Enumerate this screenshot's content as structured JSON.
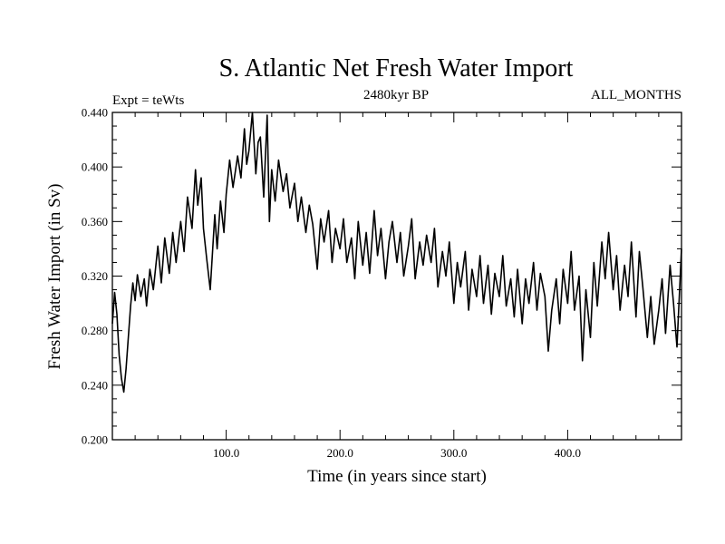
{
  "chart_data": {
    "type": "line",
    "title": "S. Atlantic Net Fresh Water Import",
    "subtitle_left": "Expt = teWts",
    "subtitle_center": "2480kyr BP",
    "subtitle_right": "ALL_MONTHS",
    "xlabel": "Time (in years since start)",
    "ylabel": "Fresh Water Import (in Sv)",
    "xlim": [
      0,
      500
    ],
    "ylim": [
      0.2,
      0.44
    ],
    "xticks_labeled": [
      100,
      200,
      300,
      400
    ],
    "xtick_labels": [
      "100.0",
      "200.0",
      "300.0",
      "400.0"
    ],
    "yticks_labeled": [
      0.2,
      0.24,
      0.28,
      0.32,
      0.36,
      0.4,
      0.44
    ],
    "ytick_labels": [
      "0.200",
      "0.240",
      "0.280",
      "0.320",
      "0.360",
      "0.400",
      "0.440"
    ],
    "series": [
      {
        "name": "Fresh Water Import",
        "x": [
          0,
          2,
          4,
          6,
          8,
          10,
          12,
          14,
          16,
          18,
          20,
          22,
          25,
          28,
          30,
          33,
          36,
          40,
          43,
          46,
          50,
          53,
          56,
          60,
          63,
          66,
          70,
          73,
          75,
          78,
          80,
          83,
          86,
          90,
          92,
          95,
          98,
          100,
          103,
          106,
          110,
          113,
          116,
          118,
          120,
          123,
          126,
          128,
          130,
          133,
          136,
          138,
          140,
          143,
          146,
          150,
          153,
          156,
          160,
          163,
          166,
          170,
          173,
          176,
          180,
          183,
          186,
          190,
          193,
          196,
          200,
          203,
          206,
          210,
          213,
          216,
          220,
          223,
          226,
          230,
          233,
          236,
          240,
          243,
          246,
          250,
          253,
          256,
          260,
          263,
          266,
          270,
          273,
          276,
          280,
          283,
          286,
          290,
          293,
          296,
          300,
          303,
          306,
          310,
          313,
          316,
          320,
          323,
          326,
          330,
          333,
          336,
          340,
          343,
          346,
          350,
          353,
          356,
          360,
          363,
          366,
          370,
          373,
          376,
          380,
          383,
          386,
          390,
          393,
          396,
          400,
          403,
          406,
          410,
          413,
          416,
          420,
          423,
          426,
          430,
          433,
          436,
          440,
          443,
          446,
          450,
          453,
          456,
          460,
          463,
          466,
          470,
          473,
          476,
          480,
          483,
          486,
          490,
          493,
          496,
          500
        ],
        "values": [
          0.285,
          0.308,
          0.292,
          0.262,
          0.245,
          0.235,
          0.252,
          0.275,
          0.298,
          0.315,
          0.302,
          0.321,
          0.305,
          0.318,
          0.298,
          0.325,
          0.31,
          0.342,
          0.315,
          0.348,
          0.322,
          0.352,
          0.33,
          0.36,
          0.338,
          0.378,
          0.355,
          0.398,
          0.372,
          0.392,
          0.355,
          0.332,
          0.31,
          0.365,
          0.34,
          0.375,
          0.352,
          0.38,
          0.405,
          0.385,
          0.408,
          0.392,
          0.428,
          0.402,
          0.412,
          0.44,
          0.395,
          0.418,
          0.422,
          0.378,
          0.438,
          0.36,
          0.398,
          0.375,
          0.405,
          0.382,
          0.395,
          0.37,
          0.388,
          0.36,
          0.378,
          0.352,
          0.372,
          0.358,
          0.325,
          0.362,
          0.345,
          0.368,
          0.33,
          0.355,
          0.34,
          0.362,
          0.33,
          0.348,
          0.318,
          0.36,
          0.328,
          0.352,
          0.322,
          0.368,
          0.335,
          0.355,
          0.318,
          0.345,
          0.36,
          0.33,
          0.352,
          0.32,
          0.342,
          0.362,
          0.318,
          0.345,
          0.328,
          0.35,
          0.33,
          0.355,
          0.312,
          0.338,
          0.32,
          0.345,
          0.3,
          0.33,
          0.312,
          0.338,
          0.295,
          0.325,
          0.305,
          0.335,
          0.3,
          0.328,
          0.292,
          0.322,
          0.305,
          0.335,
          0.298,
          0.318,
          0.29,
          0.325,
          0.285,
          0.318,
          0.3,
          0.33,
          0.295,
          0.322,
          0.305,
          0.265,
          0.295,
          0.318,
          0.285,
          0.325,
          0.3,
          0.338,
          0.295,
          0.32,
          0.258,
          0.31,
          0.275,
          0.33,
          0.298,
          0.345,
          0.318,
          0.352,
          0.31,
          0.335,
          0.295,
          0.328,
          0.305,
          0.345,
          0.29,
          0.338,
          0.312,
          0.275,
          0.305,
          0.27,
          0.295,
          0.318,
          0.278,
          0.328,
          0.3,
          0.268,
          0.34
        ]
      }
    ]
  }
}
